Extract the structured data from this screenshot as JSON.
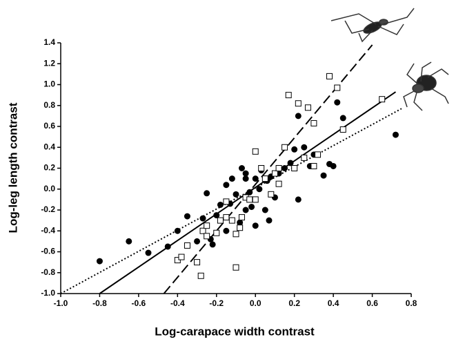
{
  "chart_data": {
    "type": "scatter",
    "x_label": "Log-carapace width contrast",
    "y_label": "Log-leg length contrast",
    "xlim": [
      -1.0,
      0.8
    ],
    "ylim": [
      -1.0,
      1.4
    ],
    "xticks": [
      {
        "value": -1.0,
        "label": "-1.0"
      },
      -0.8,
      -0.6,
      -0.4,
      -0.2,
      {
        "value": 0.0,
        "label": "0.0"
      },
      0.2,
      0.4,
      0.6,
      0.8
    ],
    "yticks": [
      {
        "value": -1.0,
        "label": "-1.0"
      },
      -0.8,
      -0.6,
      -0.4,
      -0.2,
      {
        "value": 0.0,
        "label": "0.0"
      },
      0.2,
      0.4,
      0.6,
      0.8,
      {
        "value": 1.0,
        "label": "1.0"
      },
      1.2,
      1.4
    ],
    "grid": false,
    "series": [
      {
        "marker": "circle",
        "color": "#000000",
        "x": [
          -0.8,
          -0.65,
          -0.55,
          -0.45,
          -0.4,
          -0.35,
          -0.3,
          -0.27,
          -0.25,
          -0.23,
          -0.22,
          -0.2,
          -0.18,
          -0.15,
          -0.13,
          -0.12,
          -0.1,
          -0.08,
          -0.07,
          -0.05,
          -0.05,
          -0.03,
          -0.02,
          0.0,
          0.02,
          0.03,
          0.05,
          0.06,
          0.07,
          0.08,
          0.05,
          0.1,
          0.12,
          0.15,
          0.18,
          0.2,
          0.22,
          0.22,
          0.25,
          0.28,
          0.3,
          0.35,
          0.38,
          0.4,
          0.42,
          0.45,
          0.72,
          -0.05,
          -0.12,
          0.0,
          -0.15
        ],
        "values": [
          -0.69,
          -0.5,
          -0.61,
          -0.55,
          -0.4,
          -0.26,
          -0.5,
          -0.28,
          -0.04,
          -0.48,
          -0.53,
          -0.25,
          -0.15,
          0.04,
          -0.14,
          0.1,
          -0.05,
          -0.32,
          0.2,
          -0.2,
          0.15,
          -0.03,
          -0.17,
          0.1,
          0.0,
          0.18,
          -0.2,
          0.08,
          -0.3,
          0.12,
          0.1,
          -0.08,
          0.15,
          0.2,
          0.25,
          0.38,
          0.7,
          -0.1,
          0.4,
          0.22,
          0.33,
          0.13,
          0.24,
          0.22,
          0.83,
          0.68,
          0.52,
          0.1,
          -0.3,
          -0.35,
          -0.4
        ]
      },
      {
        "marker": "square",
        "color": "#000000",
        "x": [
          -0.4,
          -0.38,
          -0.35,
          -0.3,
          -0.28,
          -0.27,
          -0.25,
          -0.25,
          -0.2,
          -0.18,
          -0.15,
          -0.15,
          -0.12,
          -0.1,
          -0.08,
          -0.1,
          -0.07,
          -0.05,
          -0.03,
          0.0,
          0.0,
          0.03,
          0.05,
          0.08,
          0.1,
          0.12,
          0.15,
          0.17,
          0.2,
          0.22,
          0.25,
          0.27,
          0.3,
          0.3,
          0.32,
          0.38,
          0.42,
          0.45,
          0.65,
          0.12
        ],
        "values": [
          -0.68,
          -0.65,
          -0.54,
          -0.7,
          -0.83,
          -0.4,
          -0.35,
          -0.45,
          -0.42,
          -0.3,
          -0.12,
          -0.27,
          -0.3,
          -0.43,
          -0.37,
          -0.75,
          -0.27,
          -0.08,
          -0.1,
          0.36,
          -0.1,
          0.2,
          0.1,
          -0.05,
          0.15,
          0.2,
          0.4,
          0.9,
          0.2,
          0.82,
          0.3,
          0.78,
          0.63,
          0.22,
          0.33,
          1.08,
          0.97,
          0.57,
          0.86,
          0.05
        ]
      }
    ],
    "lines": [
      {
        "style": "solid",
        "x": [
          -0.8,
          0.72
        ],
        "values": [
          -1.0,
          0.93
        ]
      },
      {
        "style": "dashed",
        "x": [
          -0.47,
          0.6
        ],
        "values": [
          -1.0,
          1.38
        ]
      },
      {
        "style": "dotted",
        "x": [
          -1.0,
          0.75
        ],
        "values": [
          -1.0,
          0.77
        ]
      }
    ]
  }
}
